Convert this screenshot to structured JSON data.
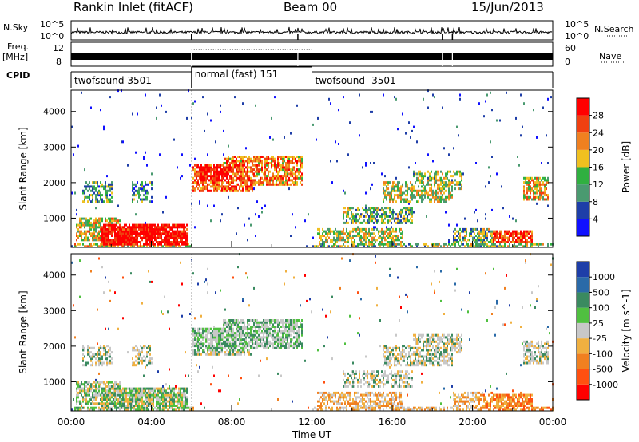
{
  "header": {
    "title": "Rankin Inlet (fitACF)",
    "beam": "Beam 00",
    "date": "15/Jun/2013"
  },
  "left_labels": {
    "nsky": "N.Sky",
    "freq": "Freq.",
    "freq_unit": "[MHz]",
    "cpid": "CPID"
  },
  "right_labels": {
    "nsearch": "N.Search",
    "nave": "Nave"
  },
  "nsky_panel": {
    "left_ticks": [
      "10^5",
      "10^0"
    ],
    "right_ticks": [
      "10^5",
      "10^0"
    ]
  },
  "freq_panel": {
    "left_ticks": [
      "12",
      "8"
    ],
    "right_ticks": [
      "60",
      "0"
    ]
  },
  "cpid_segments": [
    {
      "label": "twofsound 3501",
      "start_h": 0,
      "end_h": 6
    },
    {
      "label": "normal (fast) 151",
      "start_h": 6,
      "end_h": 12
    },
    {
      "label": "twofsound -3501",
      "start_h": 12,
      "end_h": 24
    }
  ],
  "chart_data": [
    {
      "type": "heatmap",
      "parameter": "Power",
      "ylabel": "Slant Range [km]",
      "colorbar_label": "Power [dB]",
      "yticks": [
        1000,
        2000,
        3000,
        4000
      ],
      "ylim": [
        180,
        4600
      ],
      "colorbar_ticks": [
        "4",
        "8",
        "12",
        "16",
        "20",
        "24",
        "28"
      ],
      "colors": [
        "#1010ff",
        "#1e3ea8",
        "#4a9a70",
        "#30b040",
        "#f0c020",
        "#f08020",
        "#f04010",
        "#ff0000"
      ]
    },
    {
      "type": "heatmap",
      "parameter": "Velocity",
      "ylabel": "Slant Range [km]",
      "colorbar_label": "Velocity [m s^-1]",
      "xlabel": "Time UT",
      "yticks": [
        1000,
        2000,
        3000,
        4000
      ],
      "ylim": [
        180,
        4600
      ],
      "xticks": [
        "00:00",
        "04:00",
        "08:00",
        "12:00",
        "16:00",
        "20:00",
        "00:00"
      ],
      "colorbar_ticks": [
        "1000",
        "500",
        "100",
        "25",
        "-25",
        "-100",
        "-500",
        "-1000"
      ],
      "colors": [
        "#1e3ea8",
        "#2a6aa8",
        "#3a8a60",
        "#50c040",
        "#c8c8c8",
        "#f0b040",
        "#f08020",
        "#ff5010",
        "#ff0000"
      ]
    }
  ]
}
